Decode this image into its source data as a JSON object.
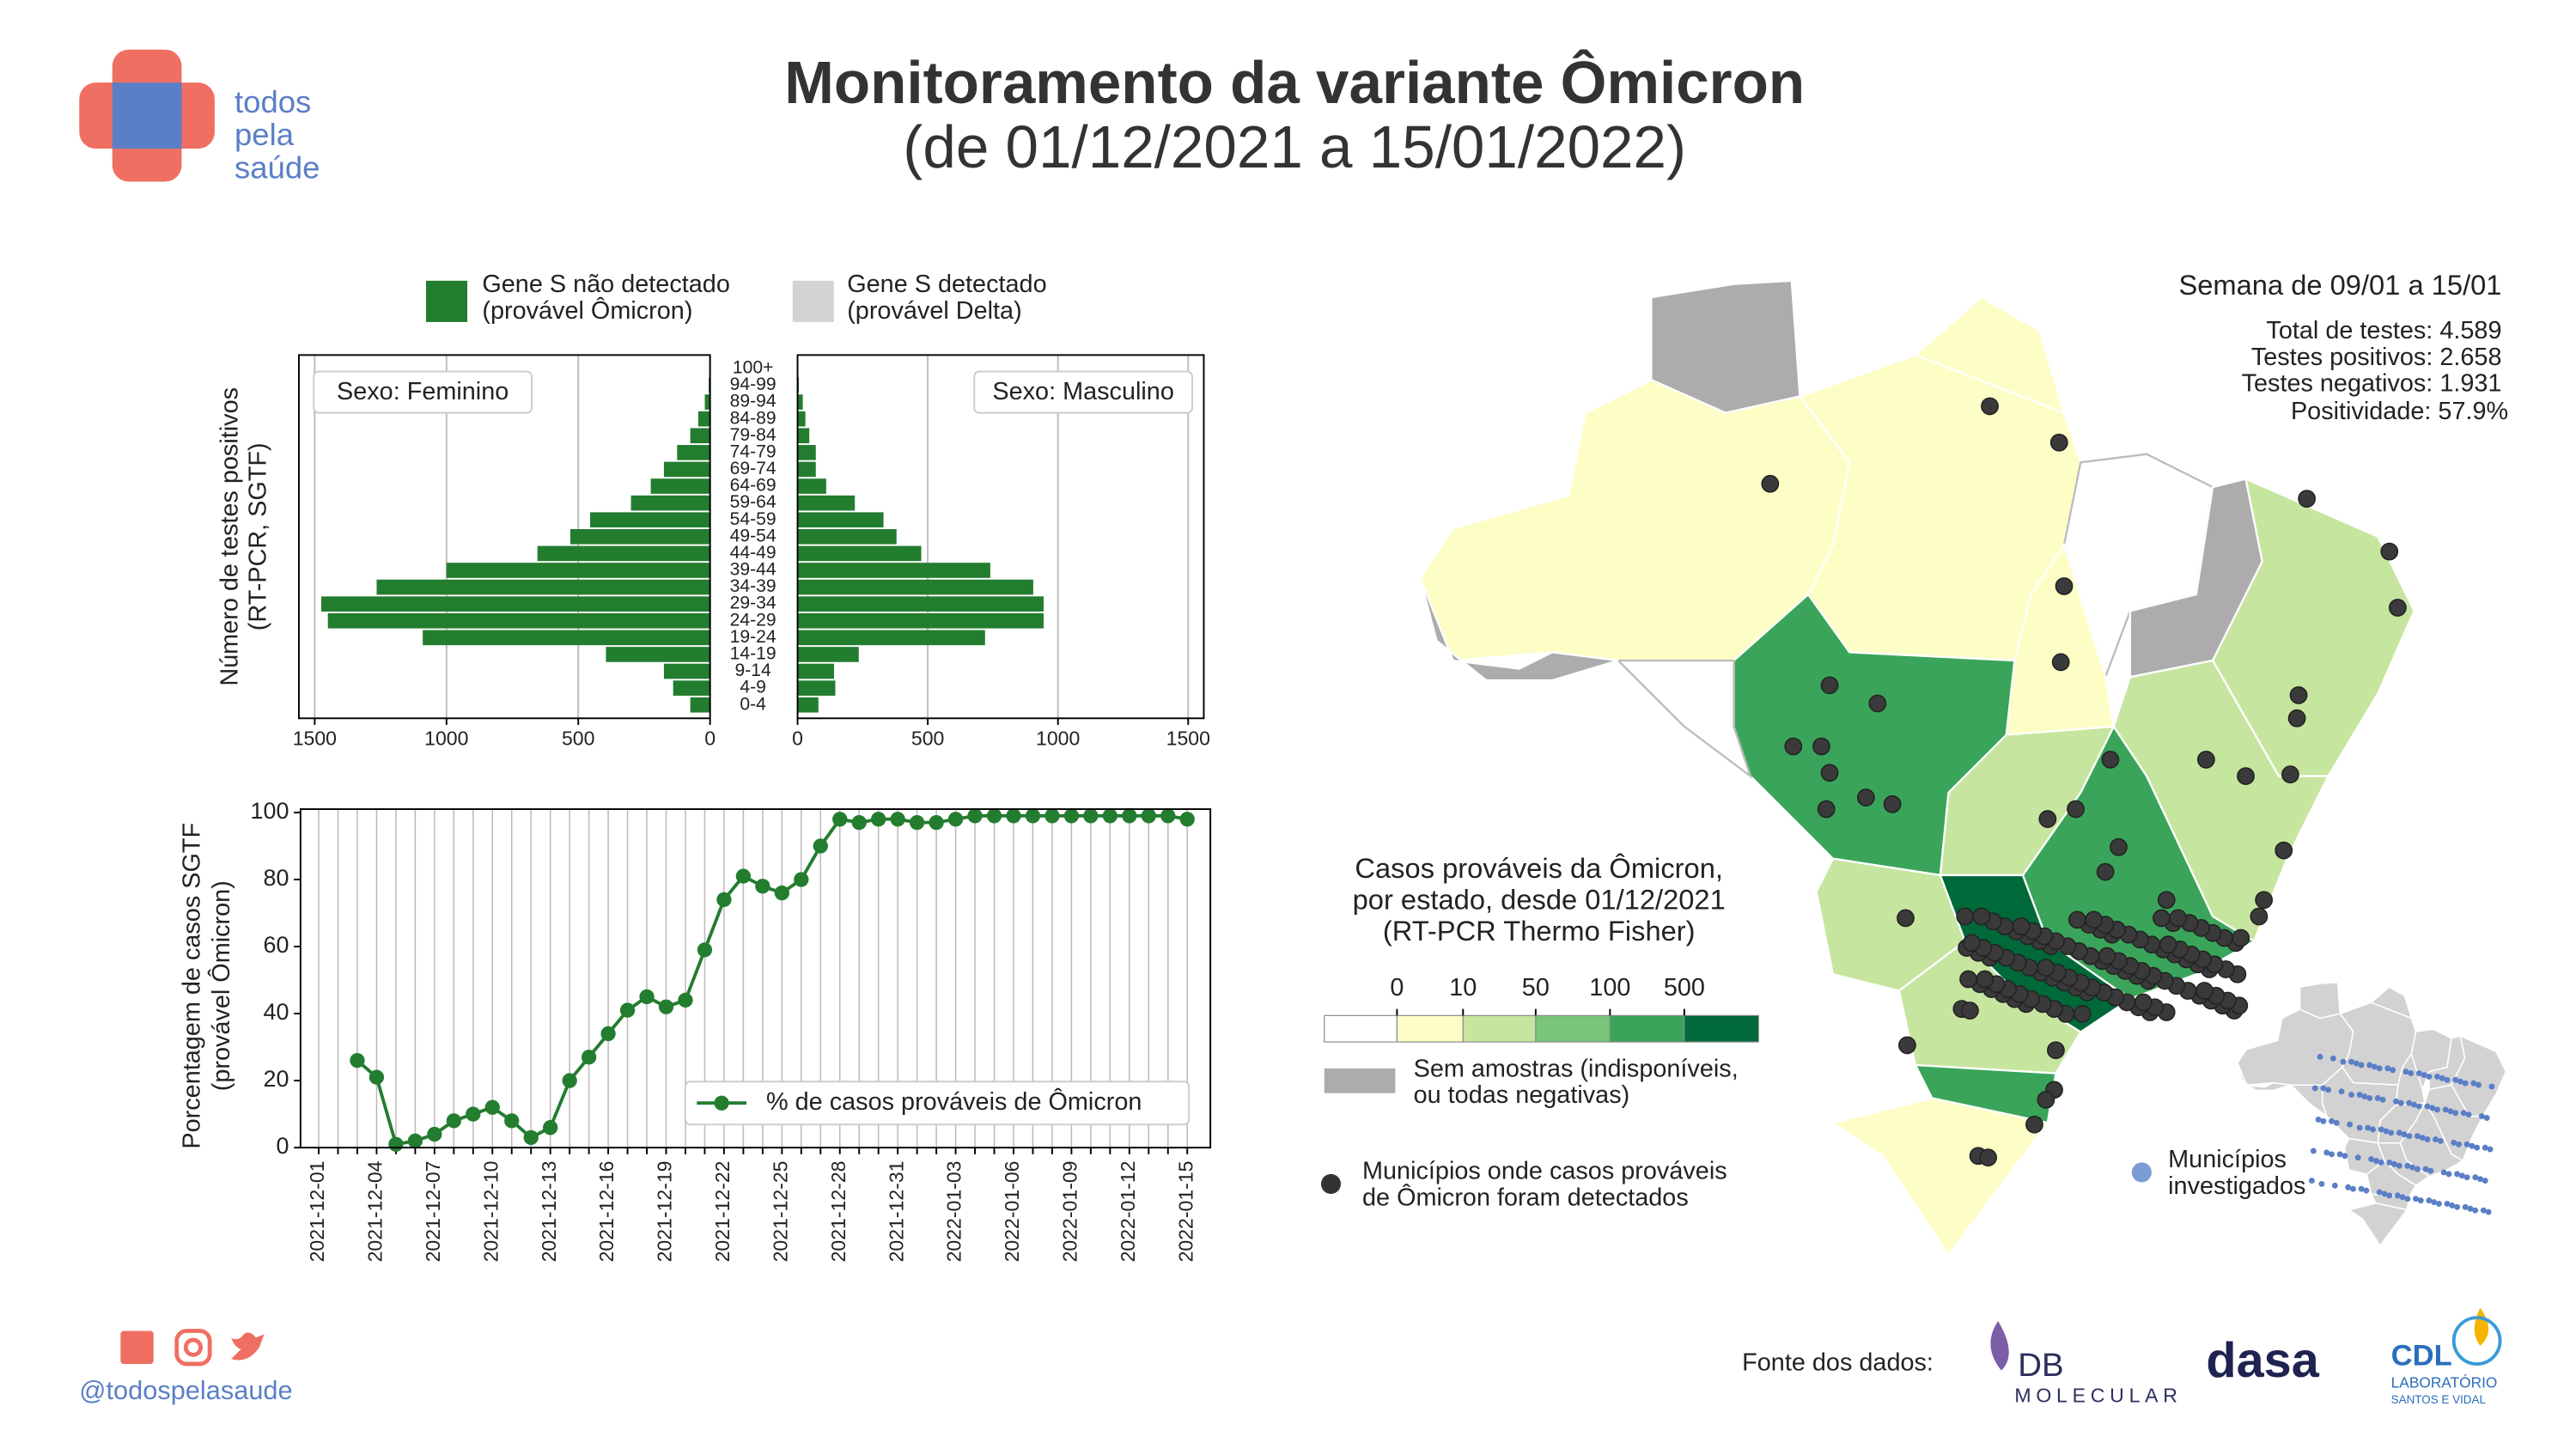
{
  "header": {
    "logo_text": [
      "todos",
      "pela",
      "saúde"
    ],
    "title": "Monitoramento da variante Ômicron",
    "subtitle": "(de 01/12/2021 a 15/01/2022)"
  },
  "chart_data": [
    {
      "type": "pyramid",
      "y_label": [
        "Número de testes positivos",
        "(RT-PCR, SGTF)"
      ],
      "legend": [
        {
          "label": [
            "Gene S não detectado",
            "(provável Ômicron)"
          ],
          "color": "#237d2f"
        },
        {
          "label": [
            "Gene S detectado",
            "(provável Delta)"
          ],
          "color": "#d3d3d3"
        }
      ],
      "categories": [
        "0-4",
        "4-9",
        "9-14",
        "14-19",
        "19-24",
        "24-29",
        "29-34",
        "34-39",
        "39-44",
        "44-49",
        "49-54",
        "54-59",
        "59-64",
        "64-69",
        "69-74",
        "74-79",
        "79-84",
        "84-89",
        "89-94",
        "94-99",
        "100+"
      ],
      "color": "#237d2f",
      "grid": true,
      "panels": [
        {
          "title": "Sexo: Feminino",
          "xlim": [
            1560,
            0
          ],
          "xticks": [
            1500,
            1000,
            500,
            0
          ],
          "values": [
            75,
            140,
            175,
            395,
            1090,
            1450,
            1475,
            1265,
            1000,
            655,
            530,
            455,
            300,
            225,
            175,
            125,
            75,
            45,
            20,
            5,
            0
          ]
        },
        {
          "title": "Sexo: Masculino",
          "xlim": [
            0,
            1560
          ],
          "xticks": [
            0,
            500,
            1000,
            1500
          ],
          "values": [
            80,
            145,
            140,
            235,
            720,
            945,
            945,
            905,
            740,
            475,
            380,
            330,
            220,
            110,
            70,
            70,
            45,
            30,
            20,
            5,
            0
          ]
        }
      ]
    },
    {
      "type": "line",
      "y_label": [
        "Porcentagem de casos SGTF",
        "(provável Ômicron)"
      ],
      "categories": [
        "2021-12-01",
        null,
        null,
        "2021-12-04",
        null,
        null,
        "2021-12-07",
        null,
        null,
        "2021-12-10",
        null,
        null,
        "2021-12-13",
        null,
        null,
        "2021-12-16",
        null,
        null,
        "2021-12-19",
        null,
        null,
        "2021-12-22",
        null,
        null,
        "2021-12-25",
        null,
        null,
        "2021-12-28",
        null,
        null,
        "2021-12-31",
        null,
        null,
        "2022-01-03",
        null,
        null,
        "2022-01-06",
        null,
        null,
        "2022-01-09",
        null,
        null,
        "2022-01-12",
        null,
        null,
        "2022-01-15"
      ],
      "series": [
        {
          "name": "% de casos prováveis de Ômicron",
          "color": "#237d2f",
          "values": [
            null,
            null,
            26,
            21,
            1,
            2,
            4,
            8,
            10,
            12,
            8,
            3,
            6,
            20,
            27,
            34,
            41,
            45,
            42,
            44,
            59,
            74,
            81,
            78,
            76,
            80,
            90,
            98,
            97,
            98,
            98,
            97,
            97,
            98,
            99,
            99,
            99,
            99,
            99,
            99,
            99,
            99,
            99,
            99,
            99,
            98
          ]
        }
      ],
      "ylim": [
        0,
        101
      ],
      "yticks": [
        0,
        20,
        40,
        60,
        80,
        100
      ],
      "grid": true
    }
  ],
  "map": {
    "stats": {
      "title": "Semana de 09/01 a 15/01",
      "lines": [
        "Total de testes: 4.589",
        "Testes positivos: 2.658",
        "Testes negativos: 1.931",
        "Positividade: 57.9%"
      ]
    },
    "legend": {
      "title": [
        "Casos prováveis da Ômicron,",
        "por estado, desde 01/12/2021",
        "(RT-PCR Thermo Fisher)"
      ],
      "ticks": [
        0,
        10,
        50,
        100,
        500
      ],
      "colors": [
        "#ffffff",
        "#fdfdc6",
        "#c6e59f",
        "#79c57a",
        "#3aa55a",
        "#00693a"
      ],
      "no_sample": {
        "label": [
          "Sem amostras (indisponíveis,",
          "ou todas negativas)"
        ],
        "color": "#acacac"
      },
      "municipalities": [
        "Municípios onde casos prováveis",
        "de Ômicron foram detectados"
      ],
      "investigated": [
        "Municípios",
        "investigados"
      ]
    }
  },
  "footer": {
    "handle": "@todospelasaude",
    "source_label": "Fonte dos dados:",
    "logos": [
      "DB",
      "MOLECULAR",
      "dasa",
      "CDL",
      "LABORATÓRIO",
      "SANTOS E VIDAL"
    ]
  }
}
